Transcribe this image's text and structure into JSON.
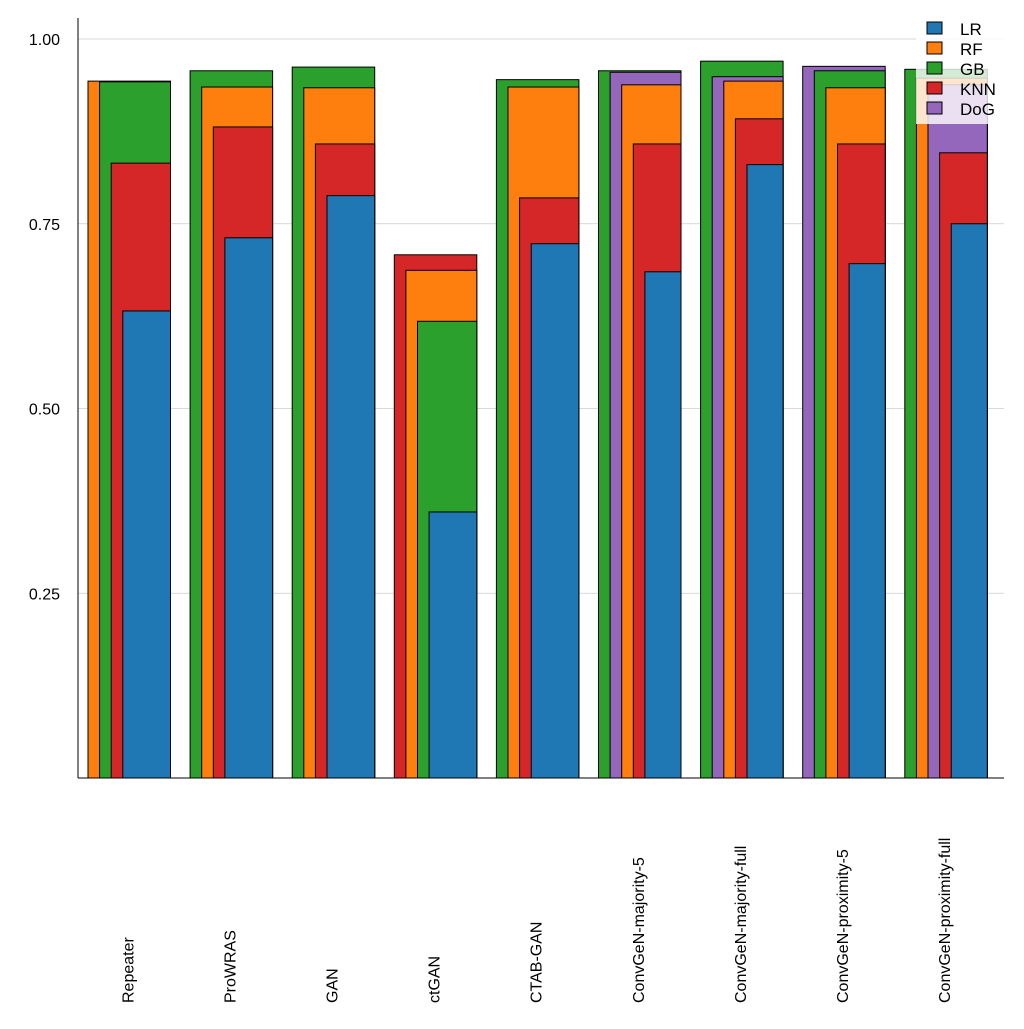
{
  "chart_data": {
    "type": "bar",
    "layout": "overlapping bars per group, sorted descending",
    "title": "",
    "xlabel": "",
    "ylabel": "",
    "ylim": [
      0,
      1.03
    ],
    "yticks": [
      "0.25",
      "0.50",
      "0.75",
      "1.00"
    ],
    "grid": "horizontal",
    "legend_position": "top-right",
    "categories": [
      "Repeater",
      "ProWRAS",
      "GAN",
      "ctGAN",
      "CTAB-GAN",
      "ConvGeN-majority-5",
      "ConvGeN-majority-full",
      "ConvGeN-proximity-5",
      "ConvGeN-proximity-full"
    ],
    "series": [
      {
        "name": "LR",
        "color": "#1f77b4",
        "values": [
          0.632,
          0.731,
          0.788,
          0.36,
          0.723,
          0.685,
          0.83,
          0.696,
          0.75
        ]
      },
      {
        "name": "RF",
        "color": "#ff7f0e",
        "values": [
          0.943,
          0.935,
          0.934,
          0.687,
          0.935,
          0.938,
          0.943,
          0.934,
          0.947
        ]
      },
      {
        "name": "GB",
        "color": "#2ca02c",
        "values": [
          0.942,
          0.957,
          0.962,
          0.618,
          0.945,
          0.957,
          0.97,
          0.957,
          0.959
        ]
      },
      {
        "name": "KNN",
        "color": "#d62728",
        "values": [
          0.832,
          0.881,
          0.858,
          0.708,
          0.785,
          0.858,
          0.892,
          0.858,
          0.846
        ]
      },
      {
        "name": "DoG",
        "color": "#9467bd",
        "values": [
          null,
          null,
          null,
          null,
          null,
          0.955,
          0.949,
          0.963,
          0.938
        ]
      }
    ]
  }
}
